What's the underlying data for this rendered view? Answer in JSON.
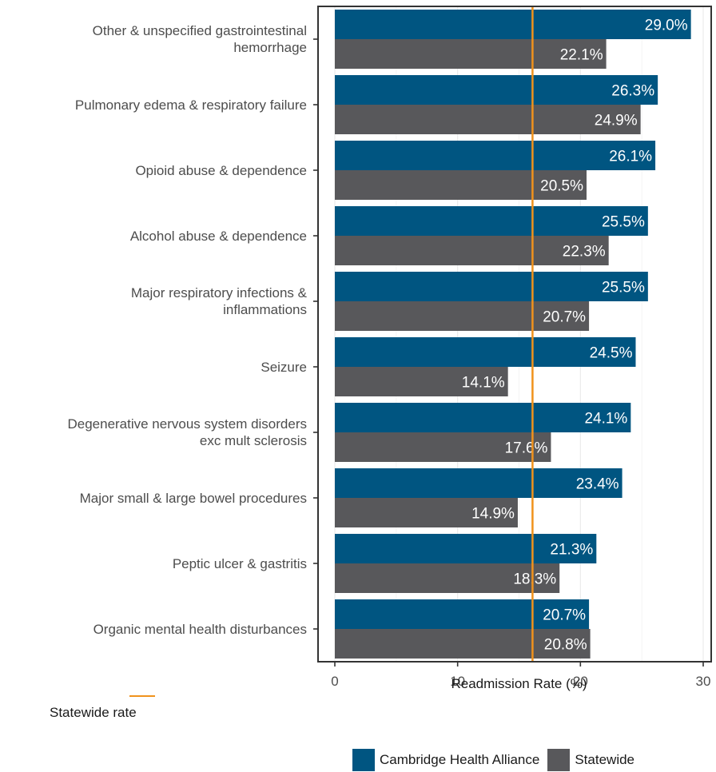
{
  "chart_data": {
    "type": "bar",
    "orientation": "horizontal",
    "categories": [
      "Other & unspecified gastrointestinal\nhemorrhage",
      "Pulmonary edema & respiratory failure",
      "Opioid abuse & dependence",
      "Alcohol abuse & dependence",
      "Major respiratory infections &\ninflammations",
      "Seizure",
      "Degenerative nervous system disorders\nexc mult sclerosis",
      "Major small & large bowel procedures",
      "Peptic ulcer & gastritis",
      "Organic mental health disturbances"
    ],
    "series": [
      {
        "name": "Cambridge Health Alliance",
        "color": "#005581",
        "values": [
          29.0,
          26.3,
          26.1,
          25.5,
          25.5,
          24.5,
          24.1,
          23.4,
          21.3,
          20.7
        ],
        "labels": [
          "29.0%",
          "26.3%",
          "26.1%",
          "25.5%",
          "25.5%",
          "24.5%",
          "24.1%",
          "23.4%",
          "21.3%",
          "20.7%"
        ]
      },
      {
        "name": "Statewide",
        "color": "#58585b",
        "values": [
          22.1,
          24.9,
          20.5,
          22.3,
          20.7,
          14.1,
          17.6,
          14.9,
          18.3,
          20.8
        ],
        "labels": [
          "22.1%",
          "24.9%",
          "20.5%",
          "22.3%",
          "20.7%",
          "14.1%",
          "17.6%",
          "14.9%",
          "18.3%",
          "20.8%"
        ]
      }
    ],
    "reference_line": {
      "label": "Statewide rate",
      "value": 16.1,
      "color": "#f0921c"
    },
    "xlabel": "Readmission Rate (%)",
    "ylabel": "",
    "xlim": [
      0,
      30
    ],
    "xticks": [
      "0",
      "10",
      "20",
      "30"
    ],
    "grid": true,
    "legend": "bottom"
  },
  "legend": {
    "statewide_rate": "Statewide rate",
    "items": [
      {
        "label": "Cambridge Health Alliance",
        "color": "#005581"
      },
      {
        "label": "Statewide",
        "color": "#58585b"
      }
    ]
  }
}
